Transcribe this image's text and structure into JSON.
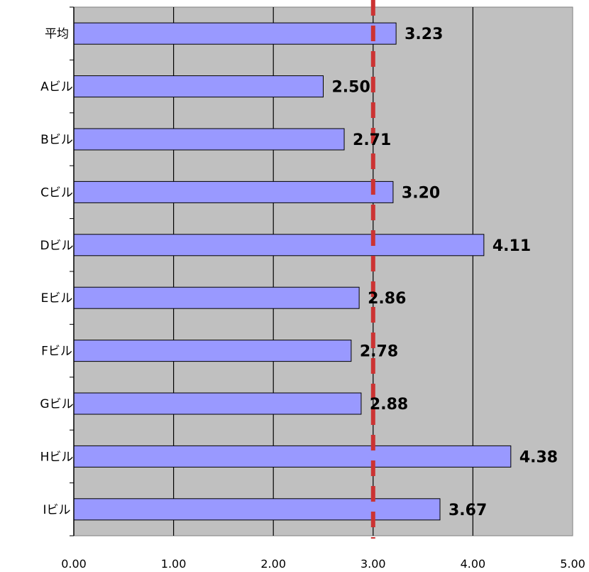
{
  "chart_data": {
    "type": "bar",
    "orientation": "horizontal",
    "categories": [
      "平均",
      "Aビル",
      "Bビル",
      "Cビル",
      "Dビル",
      "Eビル",
      "Fビル",
      "Gビル",
      "Hビル",
      "Iビル"
    ],
    "values": [
      3.23,
      2.5,
      2.71,
      3.2,
      4.11,
      2.86,
      2.78,
      2.88,
      4.38,
      3.67
    ],
    "data_labels": [
      "3.23",
      "2.50",
      "2.71",
      "3.20",
      "4.11",
      "2.86",
      "2.78",
      "2.88",
      "4.38",
      "3.67"
    ],
    "xlim": [
      0,
      5
    ],
    "x_ticks": [
      0,
      1,
      2,
      3,
      4,
      5
    ],
    "x_tick_labels": [
      "0.00",
      "1.00",
      "2.00",
      "3.00",
      "4.00",
      "5.00"
    ],
    "reference_line": {
      "value": 3.0,
      "style": "dashed",
      "color": "#cc3333"
    },
    "grid": "vertical",
    "legend": "none",
    "colors": {
      "bar_fill": "#9999ff",
      "bar_stroke": "#000000",
      "plot_background": "#c0c0c0",
      "gridline": "#000000"
    }
  }
}
